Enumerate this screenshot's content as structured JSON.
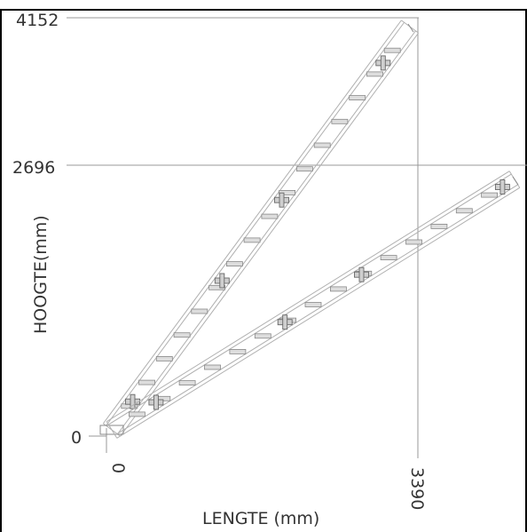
{
  "diagram": {
    "x_axis_label": "LENGTE (mm)",
    "y_axis_label": "HOOGTE(mm)",
    "y_ticks": [
      "4152",
      "2696",
      "0"
    ],
    "x_ticks": [
      "0",
      "3390"
    ],
    "colors": {
      "frame": "#000000",
      "guide_lines": "#999999",
      "ladder_lines": "#b0b0b0",
      "rung_fill": "#dddddd",
      "text": "#333333"
    }
  }
}
